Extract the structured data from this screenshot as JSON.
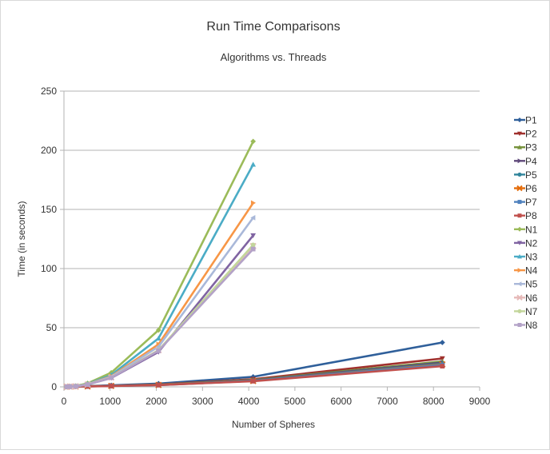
{
  "chart_data": {
    "type": "line",
    "title": "Run Time Comparisons",
    "subtitle": "Algorithms vs. Threads",
    "xlabel": "Number of Spheres",
    "ylabel": "Time (in seconds)",
    "xlim": [
      0,
      9000
    ],
    "ylim": [
      0,
      250
    ],
    "x_ticks": [
      0,
      1000,
      2000,
      3000,
      4000,
      5000,
      6000,
      7000,
      8000,
      9000
    ],
    "y_ticks": [
      0,
      50,
      100,
      150,
      200,
      250
    ],
    "grid": "horizontal",
    "legend_position": "right",
    "series": [
      {
        "name": "P1",
        "color": "#2f5f9a",
        "marker": "diamond",
        "x": [
          64,
          128,
          256,
          512,
          1024,
          2048,
          4096,
          8192
        ],
        "y": [
          0.1,
          0.2,
          0.4,
          0.7,
          1.3,
          2.8,
          8.5,
          37.5
        ]
      },
      {
        "name": "P2",
        "color": "#a0302d",
        "marker": "triangle-down",
        "x": [
          64,
          128,
          256,
          512,
          1024,
          2048,
          4096,
          8192
        ],
        "y": [
          0.1,
          0.2,
          0.3,
          0.5,
          1.0,
          2.0,
          6.5,
          24.0
        ]
      },
      {
        "name": "P3",
        "color": "#77933c",
        "marker": "triangle",
        "x": [
          64,
          128,
          256,
          512,
          1024,
          2048,
          4096,
          8192
        ],
        "y": [
          0.1,
          0.2,
          0.3,
          0.5,
          0.9,
          1.8,
          5.8,
          21.5
        ]
      },
      {
        "name": "P4",
        "color": "#604a7b",
        "marker": "triangle-right",
        "x": [
          64,
          128,
          256,
          512,
          1024,
          2048,
          4096,
          8192
        ],
        "y": [
          0.1,
          0.2,
          0.3,
          0.5,
          0.9,
          1.7,
          5.5,
          20.5
        ]
      },
      {
        "name": "P5",
        "color": "#31859c",
        "marker": "circle",
        "x": [
          64,
          128,
          256,
          512,
          1024,
          2048,
          4096,
          8192
        ],
        "y": [
          0.1,
          0.2,
          0.3,
          0.5,
          0.8,
          1.6,
          5.2,
          19.5
        ]
      },
      {
        "name": "P6",
        "color": "#e46c0a",
        "marker": "x",
        "x": [
          64,
          128,
          256,
          512,
          1024,
          2048,
          4096,
          8192
        ],
        "y": [
          0.1,
          0.2,
          0.3,
          0.4,
          0.8,
          1.6,
          5.0,
          19.0
        ]
      },
      {
        "name": "P7",
        "color": "#4f81bd",
        "marker": "square",
        "x": [
          64,
          128,
          256,
          512,
          1024,
          2048,
          4096,
          8192
        ],
        "y": [
          0.1,
          0.2,
          0.3,
          0.4,
          0.8,
          1.5,
          5.0,
          18.5
        ]
      },
      {
        "name": "P8",
        "color": "#c0504d",
        "marker": "square",
        "x": [
          64,
          128,
          256,
          512,
          1024,
          2048,
          4096,
          8192
        ],
        "y": [
          0.1,
          0.2,
          0.3,
          0.4,
          0.7,
          1.5,
          4.8,
          17.5
        ]
      },
      {
        "name": "N1",
        "color": "#9bbb59",
        "marker": "diamond",
        "x": [
          64,
          128,
          256,
          512,
          1024,
          2048,
          4096
        ],
        "y": [
          0.1,
          0.3,
          0.8,
          3.0,
          12.0,
          48.0,
          207.5
        ]
      },
      {
        "name": "N2",
        "color": "#8064a2",
        "marker": "triangle-down",
        "x": [
          64,
          128,
          256,
          512,
          1024,
          2048,
          4096
        ],
        "y": [
          0.1,
          0.2,
          0.5,
          2.0,
          7.5,
          29.5,
          128.0
        ]
      },
      {
        "name": "N3",
        "color": "#4bacc6",
        "marker": "triangle",
        "x": [
          64,
          128,
          256,
          512,
          1024,
          2048,
          4096
        ],
        "y": [
          0.1,
          0.2,
          0.6,
          2.5,
          10.0,
          41.0,
          188.0
        ]
      },
      {
        "name": "N4",
        "color": "#f79646",
        "marker": "triangle-right",
        "x": [
          64,
          128,
          256,
          512,
          1024,
          2048,
          4096
        ],
        "y": [
          0.1,
          0.2,
          0.5,
          2.2,
          9.0,
          36.0,
          155.5
        ]
      },
      {
        "name": "N5",
        "color": "#a9b8d9",
        "marker": "triangle-left",
        "x": [
          64,
          128,
          256,
          512,
          1024,
          2048,
          4096
        ],
        "y": [
          0.1,
          0.2,
          0.5,
          2.1,
          8.5,
          34.0,
          143.0
        ]
      },
      {
        "name": "N6",
        "color": "#e6b9b8",
        "marker": "x",
        "x": [
          64,
          128,
          256,
          512,
          1024,
          2048,
          4096
        ],
        "y": [
          0.1,
          0.2,
          0.5,
          2.0,
          8.0,
          31.0,
          119.0
        ]
      },
      {
        "name": "N7",
        "color": "#c3d69b",
        "marker": "circle",
        "x": [
          64,
          128,
          256,
          512,
          1024,
          2048,
          4096
        ],
        "y": [
          0.1,
          0.2,
          0.5,
          2.0,
          8.0,
          31.0,
          120.0
        ]
      },
      {
        "name": "N8",
        "color": "#b3a2c7",
        "marker": "square",
        "x": [
          64,
          128,
          256,
          512,
          1024,
          2048,
          4096
        ],
        "y": [
          0.1,
          0.2,
          0.5,
          1.9,
          7.8,
          30.5,
          116.5
        ]
      }
    ]
  }
}
